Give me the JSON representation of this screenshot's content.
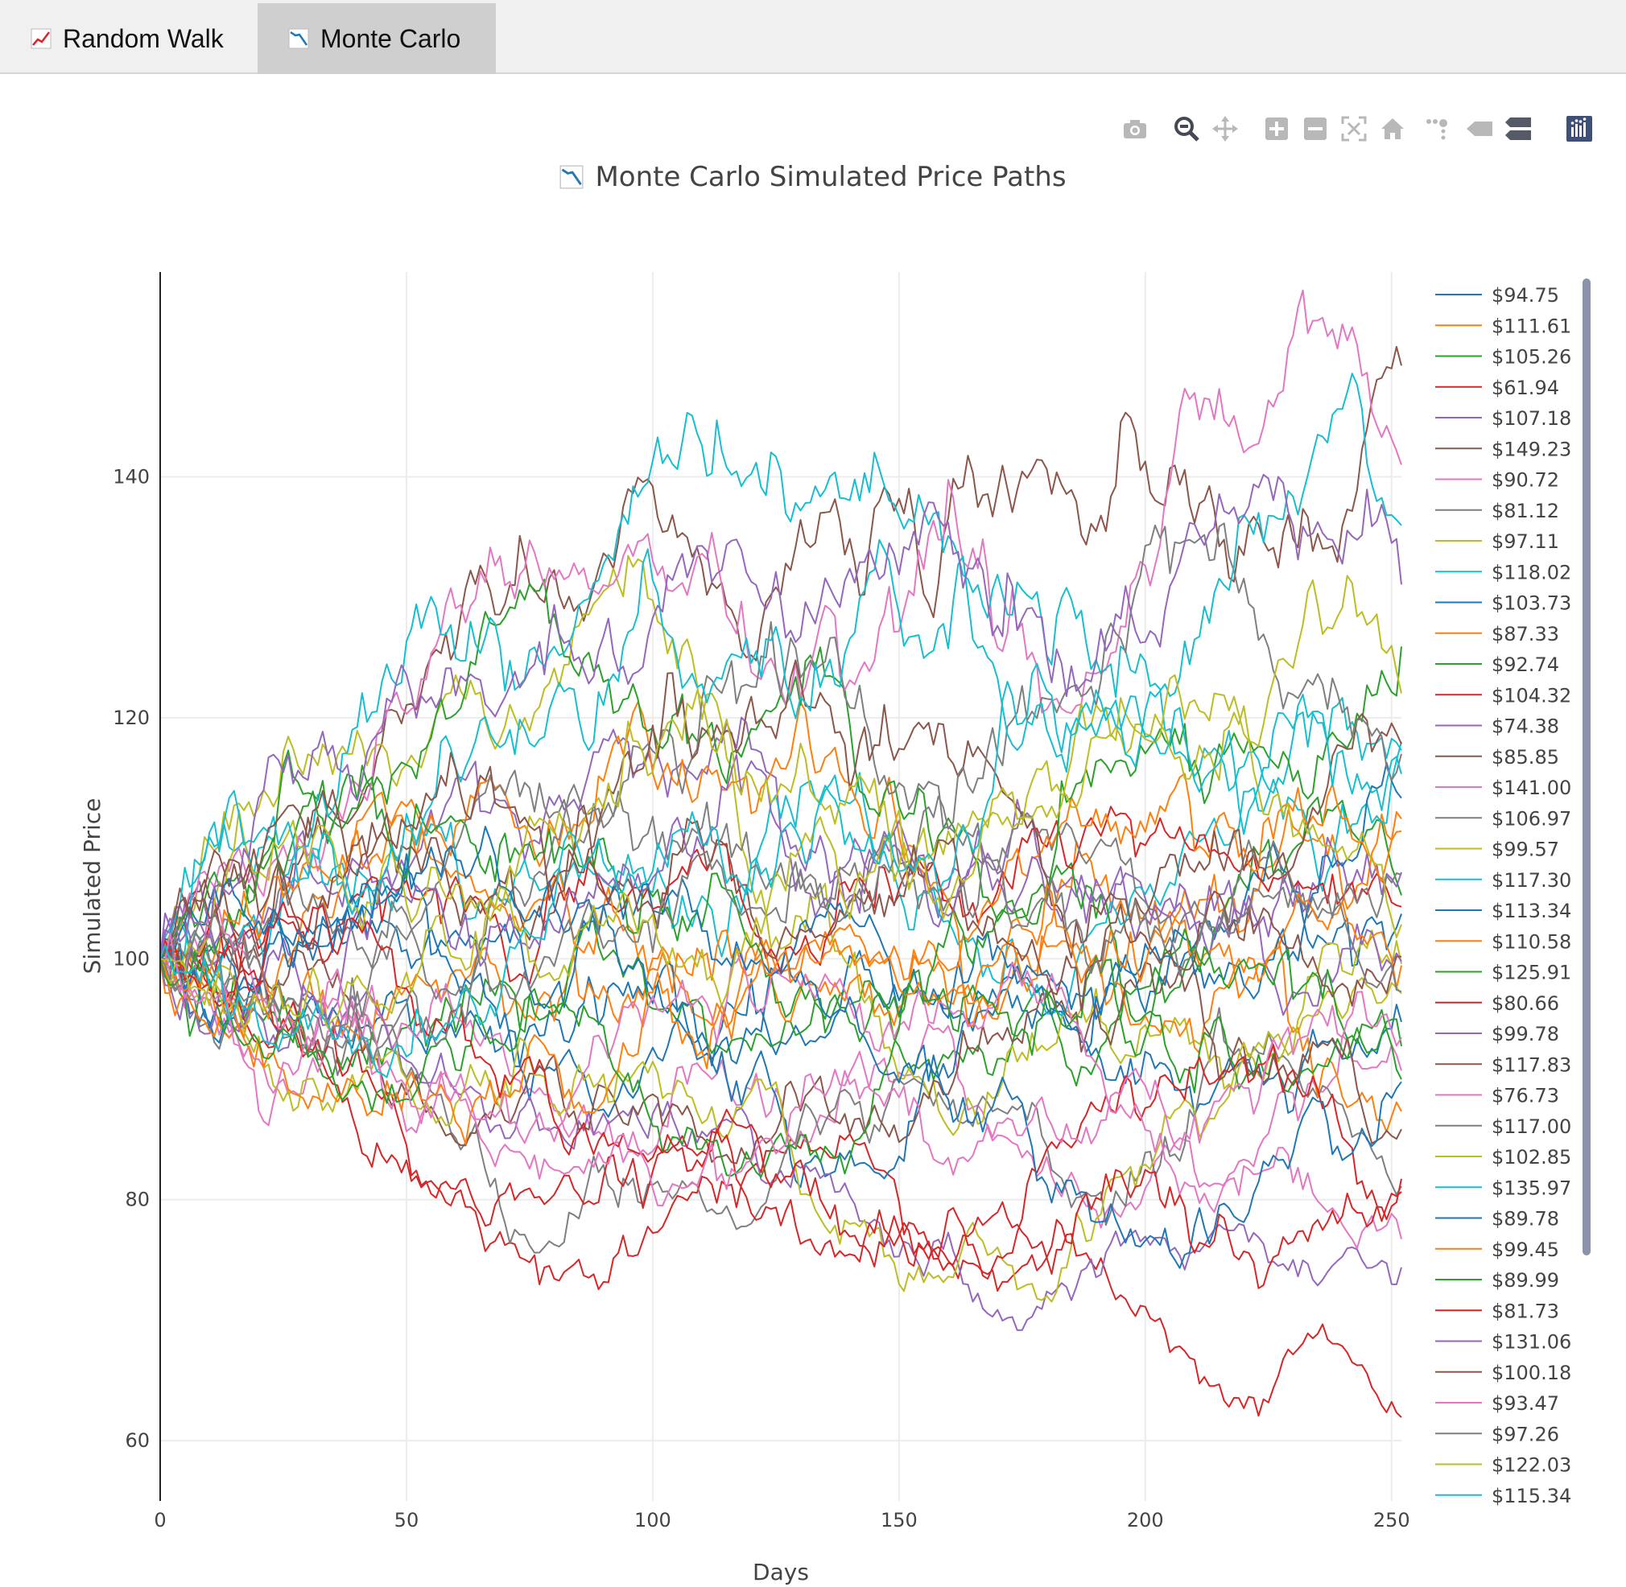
{
  "tabs": [
    {
      "label": "Random Walk",
      "icon": "chart-increasing-icon",
      "active": false
    },
    {
      "label": "Monte Carlo",
      "icon": "chart-decreasing-icon",
      "active": true
    }
  ],
  "modebar": {
    "buttons": [
      "camera-icon",
      "zoom-icon",
      "pan-icon",
      "zoom-in-icon",
      "zoom-out-icon",
      "autoscale-icon",
      "reset-axes-icon",
      "spike-lines-icon",
      "hover-closest-icon",
      "hover-compare-icon",
      "plotly-logo-icon"
    ]
  },
  "colors": {
    "palette": [
      "#1f77b4",
      "#ff7f0e",
      "#2ca02c",
      "#d62728",
      "#9467bd",
      "#8c564b",
      "#e377c2",
      "#7f7f7f",
      "#bcbd22",
      "#17becf"
    ],
    "active_tab_bg": "#cfcfcf",
    "tabbar_bg": "#f0f0f0",
    "scrollbar": "#8b93aa"
  },
  "chart_data": {
    "type": "line",
    "title": "Monte Carlo Simulated Price Paths",
    "title_icon": "chart-decreasing-icon",
    "xlabel": "Days",
    "ylabel": "Simulated Price",
    "xlim": [
      0,
      252
    ],
    "ylim": [
      55,
      157
    ],
    "x_ticks": [
      0,
      50,
      100,
      150,
      200,
      250
    ],
    "x_tick_labels": [
      "0",
      "50",
      "100",
      "150",
      "200",
      "250"
    ],
    "y_ticks": [
      60,
      80,
      100,
      120,
      140
    ],
    "y_tick_labels": [
      "60",
      "80",
      "100",
      "120",
      "140"
    ],
    "grid": true,
    "legend_position": "right",
    "start_value": 100,
    "num_days": 252,
    "series": [
      {
        "name": "$94.75",
        "final": 94.75
      },
      {
        "name": "$111.61",
        "final": 111.61
      },
      {
        "name": "$105.26",
        "final": 105.26
      },
      {
        "name": "$61.94",
        "final": 61.94
      },
      {
        "name": "$107.18",
        "final": 107.18
      },
      {
        "name": "$149.23",
        "final": 149.23
      },
      {
        "name": "$90.72",
        "final": 90.72
      },
      {
        "name": "$81.12",
        "final": 81.12
      },
      {
        "name": "$97.11",
        "final": 97.11
      },
      {
        "name": "$118.02",
        "final": 118.02
      },
      {
        "name": "$103.73",
        "final": 103.73
      },
      {
        "name": "$87.33",
        "final": 87.33
      },
      {
        "name": "$92.74",
        "final": 92.74
      },
      {
        "name": "$104.32",
        "final": 104.32
      },
      {
        "name": "$74.38",
        "final": 74.38
      },
      {
        "name": "$85.85",
        "final": 85.85
      },
      {
        "name": "$141.00",
        "final": 141.0
      },
      {
        "name": "$106.97",
        "final": 106.97
      },
      {
        "name": "$99.57",
        "final": 99.57
      },
      {
        "name": "$117.30",
        "final": 117.3
      },
      {
        "name": "$113.34",
        "final": 113.34
      },
      {
        "name": "$110.58",
        "final": 110.58
      },
      {
        "name": "$125.91",
        "final": 125.91
      },
      {
        "name": "$80.66",
        "final": 80.66
      },
      {
        "name": "$99.78",
        "final": 99.78
      },
      {
        "name": "$117.83",
        "final": 117.83
      },
      {
        "name": "$76.73",
        "final": 76.73
      },
      {
        "name": "$117.00",
        "final": 117.0
      },
      {
        "name": "$102.85",
        "final": 102.85
      },
      {
        "name": "$135.97",
        "final": 135.97
      },
      {
        "name": "$89.78",
        "final": 89.78
      },
      {
        "name": "$99.45",
        "final": 99.45
      },
      {
        "name": "$89.99",
        "final": 89.99
      },
      {
        "name": "$81.73",
        "final": 81.73
      },
      {
        "name": "$131.06",
        "final": 131.06
      },
      {
        "name": "$100.18",
        "final": 100.18
      },
      {
        "name": "$93.47",
        "final": 93.47
      },
      {
        "name": "$97.26",
        "final": 97.26
      },
      {
        "name": "$122.03",
        "final": 122.03
      },
      {
        "name": "$115.34",
        "final": 115.34
      }
    ]
  }
}
